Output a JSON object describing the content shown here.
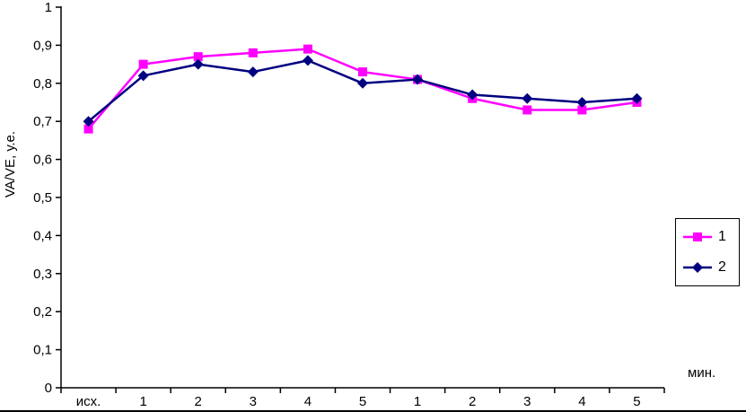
{
  "chart_data": {
    "type": "line",
    "categories": [
      "исх.",
      "1",
      "2",
      "3",
      "4",
      "5",
      "1",
      "2",
      "3",
      "4",
      "5"
    ],
    "series": [
      {
        "name": "1",
        "color": "#FF00FF",
        "marker": "square",
        "values": [
          0.68,
          0.85,
          0.87,
          0.88,
          0.89,
          0.83,
          0.81,
          0.76,
          0.73,
          0.73,
          0.75
        ]
      },
      {
        "name": "2",
        "color": "#000080",
        "marker": "diamond",
        "values": [
          0.7,
          0.82,
          0.85,
          0.83,
          0.86,
          0.8,
          0.81,
          0.77,
          0.76,
          0.75,
          0.76
        ]
      }
    ],
    "title": "",
    "xlabel": "мин.",
    "ylabel": "VA/VE, у.е.",
    "ylim": [
      0,
      1
    ],
    "ytick_step": 0.1,
    "ytick_labels": [
      "0",
      "0,1",
      "0,2",
      "0,3",
      "0,4",
      "0,5",
      "0,6",
      "0,7",
      "0,8",
      "0,9",
      "1"
    ],
    "grid": false,
    "legend_position": "right",
    "legend_labels": [
      "1",
      "2"
    ]
  }
}
